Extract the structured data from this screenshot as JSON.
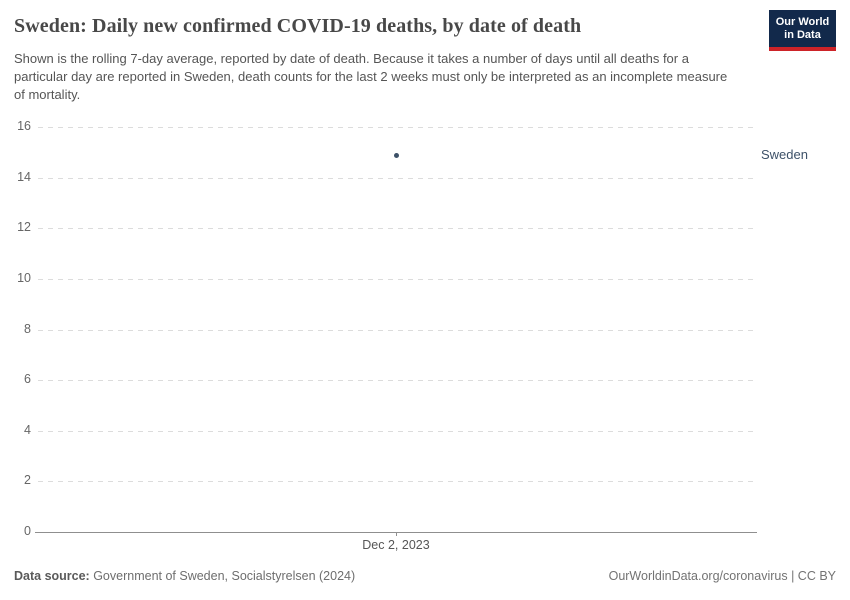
{
  "header": {
    "title": "Sweden: Daily new confirmed COVID-19 deaths, by date of death",
    "subtitle": "Shown is the rolling 7-day average, reported by date of death. Because it takes a number of days until all deaths for a particular day are reported in Sweden, death counts for the last 2 weeks must only be interpreted as an incomplete measure of mortality.",
    "logo": {
      "line1": "Our World",
      "line2": "in Data"
    }
  },
  "chart_data": {
    "type": "scatter",
    "title": "Sweden: Daily new confirmed COVID-19 deaths, by date of death",
    "ylim": [
      0,
      16
    ],
    "y_ticks": [
      0,
      2,
      4,
      6,
      8,
      10,
      12,
      14,
      16
    ],
    "x_ticks": [
      "Dec 2, 2023"
    ],
    "grid": "horizontal-dashed",
    "legend_position": "right-entity-label",
    "series": [
      {
        "name": "Sweden",
        "color": "#3d5168",
        "points": [
          {
            "x": "Dec 2, 2023",
            "y": 14.9
          }
        ]
      }
    ]
  },
  "footer": {
    "source_label": "Data source:",
    "source_value": " Government of Sweden, Socialstyrelsen (2024)",
    "attribution": "OurWorldinData.org/coronavirus | CC BY"
  },
  "colors": {
    "series": "#3d5168",
    "logo_navy": "#12294B",
    "logo_red": "#CD2328",
    "gridline": "#dcdcdc",
    "axis_line": "#8f8f8f",
    "title_text": "#484848",
    "subtitle_text": "#555555",
    "tick_text": "#666666"
  }
}
